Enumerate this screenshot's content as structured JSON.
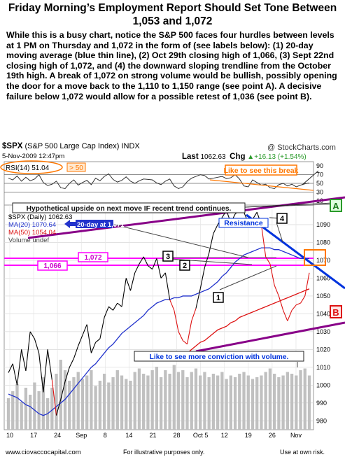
{
  "title": "Friday Morning’s Employment Report Should Set Tone Between 1,053 and 1,072",
  "intro": "While this is a busy chart, notice the S&P 500 faces four hurdles between levels at 1 PM on Thursday and 1,072 in the form of (see labels below): (1) 20-day moving average (blue thin line), (2) Oct 29th closing high of 1,066, (3) Sept 22nd closing high of 1,072, and (4) the downward sloping trendline from the October 19th high. A break of 1,072 on strong volume would be bullish, possibly opening the door for a move back to the 1,110 to 1,150 range (see point A).  A decisive failure below 1,072 would allow for a possible retest of 1,036 (see point B).",
  "header": {
    "symbol": "$SPX",
    "name": "(S&P 500 Large Cap Index) INDX",
    "credit": "@ StockCharts.com",
    "date": "5-Nov-2009 12:47pm",
    "last_label": "Last",
    "last_value": "1062.63",
    "chg_label": "Chg",
    "chg_value": "+16.13 (+1.54%)",
    "chg_arrow": "▲"
  },
  "rsi_panel": {
    "legend": "RSI(14) 51.04",
    "above_label": "> 50",
    "ticks": [
      "90",
      "70",
      "50",
      "30",
      "10"
    ]
  },
  "price_panel": {
    "legend_main": "$SPX (Daily) 1062.63",
    "legend_ma20": "MA(20) 1070.64",
    "legend_ma50": "MA(50) 1054.04",
    "legend_vol": "Volume undef",
    "y_ticks": [
      "1090",
      "1080",
      "1070",
      "1060",
      "1050",
      "1040",
      "1030",
      "1020",
      "1010",
      "1000",
      "990",
      "980"
    ],
    "x_ticks": [
      "10",
      "17",
      "24",
      "Sep",
      "8",
      "14",
      "21",
      "28",
      "Oct 5",
      "12",
      "19",
      "26",
      "Nov"
    ]
  },
  "annotations": {
    "break_note": "Like to see this break",
    "hypothetical": "Hypothetical upside on next move IF recent trend continues.",
    "resistance": "Resistance",
    "ma20_note": "20-day at 1,071",
    "level_1072": "1,072",
    "level_1066": "1,066",
    "conviction": "Like to see more conviction with volume.",
    "point_a": "A",
    "point_b": "B",
    "label_1": "1",
    "label_2": "2",
    "label_3": "3",
    "label_4": "4"
  },
  "footer": {
    "site": "www.ciovaccocapital.com",
    "illustrative": "For illustrative purposes only.",
    "risk": "Use at own risk."
  },
  "colors": {
    "price": "#000000",
    "ma20": "#2233cc",
    "ma50": "#dd1111",
    "trend": "#880088",
    "level": "#ff00ff",
    "resistance": "#0033dd",
    "volume": "#c0c0c0",
    "orange": "#ff7700"
  },
  "chart_data": [
    {
      "type": "line",
      "title": "RSI(14)",
      "x": [
        1,
        2,
        3,
        4,
        5,
        6,
        7,
        8,
        9,
        10,
        11,
        12,
        13,
        14,
        15,
        16,
        17,
        18,
        19,
        20,
        21,
        22,
        23,
        24,
        25,
        26,
        27,
        28,
        29,
        30,
        31,
        32,
        33,
        34,
        35,
        36,
        37,
        38,
        39,
        40,
        41,
        42,
        43,
        44,
        45,
        46,
        47,
        48,
        49,
        50,
        51,
        52,
        53,
        54,
        55,
        56,
        57,
        58,
        59,
        60,
        61,
        62,
        63,
        64,
        65,
        66,
        67,
        68,
        69,
        70
      ],
      "series": [
        {
          "name": "RSI(14)",
          "values": [
            62,
            58,
            67,
            55,
            64,
            56,
            60,
            70,
            52,
            45,
            48,
            55,
            40,
            38,
            50,
            58,
            46,
            52,
            57,
            47,
            62,
            56,
            66,
            72,
            59,
            53,
            57,
            65,
            55,
            50,
            56,
            60,
            59,
            58,
            51,
            47,
            55,
            60,
            44,
            38,
            42,
            54,
            62,
            66,
            70,
            68,
            60,
            62,
            64,
            66,
            61,
            63,
            70,
            60,
            44,
            42,
            58,
            52,
            46,
            48,
            40,
            38,
            47,
            50,
            44,
            48,
            42,
            46,
            49,
            51
          ]
        }
      ],
      "ylim": [
        0,
        100
      ],
      "reference_lines": [
        70,
        50,
        30
      ]
    },
    {
      "type": "line",
      "title": "$SPX (Daily)",
      "x": [
        1,
        2,
        3,
        4,
        5,
        6,
        7,
        8,
        9,
        10,
        11,
        12,
        13,
        14,
        15,
        16,
        17,
        18,
        19,
        20,
        21,
        22,
        23,
        24,
        25,
        26,
        27,
        28,
        29,
        30,
        31,
        32,
        33,
        34,
        35,
        36,
        37,
        38,
        39,
        40,
        41,
        42,
        43,
        44,
        45,
        46,
        47,
        48,
        49,
        50,
        51,
        52,
        53,
        54,
        55,
        56,
        57,
        58,
        59,
        60,
        61,
        62,
        63,
        64,
        65,
        66,
        67,
        68,
        69,
        70
      ],
      "ylim": [
        975,
        1101
      ],
      "series": [
        {
          "name": "$SPX (Daily)",
          "values": [
            1007,
            1012,
            1000,
            1020,
            1008,
            1030,
            1026,
            1018,
            996,
            1020,
            1003,
            983,
            992,
            1002,
            1010,
            1015,
            1022,
            1028,
            1034,
            1018,
            1024,
            1026,
            1038,
            1044,
            1042,
            1046,
            1044,
            1060,
            1053,
            1063,
            1068,
            1072,
            1067,
            1065,
            1071,
            1060,
            1063,
            1048,
            1042,
            1030,
            1025,
            1023,
            1036,
            1043,
            1054,
            1066,
            1074,
            1085,
            1090,
            1094,
            1098,
            1091,
            1096,
            1098,
            1097,
            1091,
            1093,
            1097,
            1090,
            1072,
            1068,
            1056,
            1050,
            1042,
            1036,
            1042,
            1045,
            1046,
            1050,
            1063
          ]
        },
        {
          "name": "MA(20)",
          "values": [
            995,
            994,
            993,
            991,
            989,
            988,
            986,
            984,
            983,
            984,
            986,
            988,
            990,
            992,
            995,
            998,
            1001,
            1004,
            1007,
            1010,
            1012,
            1015,
            1018,
            1021,
            1023,
            1026,
            1029,
            1031,
            1033,
            1035,
            1037,
            1039,
            1042,
            1044,
            1046,
            1047,
            1048,
            1048,
            1049,
            1049,
            1050,
            1050,
            1050,
            1051,
            1052,
            1053,
            1054,
            1056,
            1058,
            1061,
            1063,
            1066,
            1069,
            1071,
            1073,
            1074,
            1075,
            1076,
            1077,
            1077,
            1077,
            1076,
            1076,
            1075,
            1074,
            1073,
            1072,
            1071,
            1071,
            1071
          ]
        },
        {
          "name": "MA(50)",
          "values": [
            null,
            null,
            null,
            null,
            null,
            null,
            null,
            null,
            null,
            null,
            null,
            null,
            null,
            null,
            null,
            null,
            null,
            null,
            null,
            null,
            null,
            null,
            null,
            null,
            null,
            null,
            null,
            null,
            null,
            null,
            null,
            null,
            null,
            null,
            null,
            null,
            null,
            null,
            null,
            null,
            1016,
            1018,
            1020,
            1022,
            1024,
            1025,
            1027,
            1029,
            1031,
            1032,
            1033,
            1035,
            1036,
            1038,
            1039,
            1040,
            1041,
            1042,
            1043,
            1044,
            1045,
            1046,
            1047,
            1048,
            1049,
            1050,
            1051,
            1052,
            1053,
            1054
          ]
        },
        {
          "name": "Volume",
          "values": [
            18,
            22,
            26,
            16,
            24,
            20,
            27,
            22,
            30,
            18,
            24,
            32,
            40,
            34,
            28,
            30,
            33,
            29,
            31,
            34,
            25,
            28,
            32,
            27,
            30,
            34,
            31,
            29,
            28,
            33,
            35,
            32,
            31,
            34,
            36,
            30,
            34,
            32,
            37,
            33,
            34,
            30,
            33,
            35,
            31,
            33,
            30,
            32,
            31,
            33,
            29,
            31,
            30,
            32,
            33,
            31,
            29,
            30,
            31,
            33,
            35,
            32,
            30,
            31,
            33,
            32,
            31,
            34,
            35,
            31
          ]
        }
      ]
    }
  ]
}
